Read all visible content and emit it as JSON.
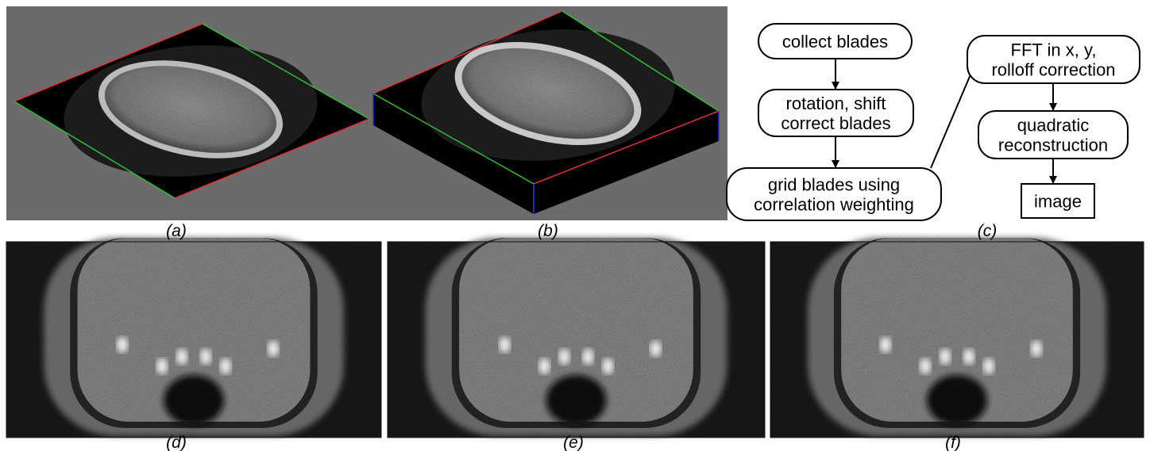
{
  "captions": [
    "(a)",
    "(b)",
    "(c)",
    "(d)",
    "(e)",
    "(f)"
  ],
  "flowchart": {
    "nodes": [
      {
        "lines": [
          "collect blades"
        ]
      },
      {
        "lines": [
          "rotation, shift",
          "correct blades"
        ]
      },
      {
        "lines": [
          "grid blades using",
          "correlation weighting"
        ]
      },
      {
        "lines": [
          "FFT in x, y,",
          "rolloff correction"
        ]
      },
      {
        "lines": [
          "quadratic",
          "reconstruction"
        ]
      },
      {
        "lines": [
          "image"
        ]
      }
    ]
  }
}
